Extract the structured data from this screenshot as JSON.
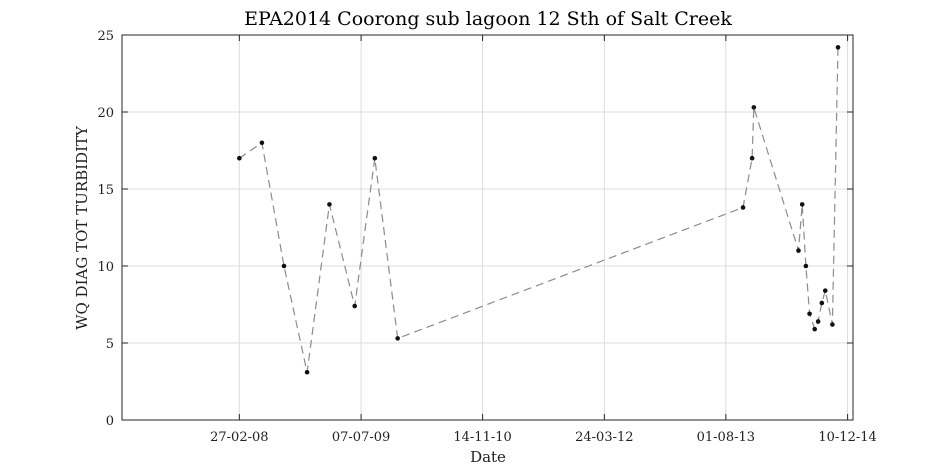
{
  "chart_data": {
    "type": "scatter",
    "title": "EPA2014 Coorong sub lagoon 12 Sth of Salt Creek",
    "xlabel": "Date",
    "ylabel": "WQ DIAG TOT TURBIDITY",
    "xlim": [
      "2006-11-06",
      "2015-01-01"
    ],
    "ylim": [
      0,
      25
    ],
    "x_ticks": [
      "2008-02-27",
      "2009-07-07",
      "2010-11-14",
      "2012-03-24",
      "2013-08-01",
      "2014-12-10"
    ],
    "x_tick_labels": [
      "27-02-08",
      "07-07-09",
      "14-11-10",
      "24-03-12",
      "01-08-13",
      "10-12-14"
    ],
    "y_ticks": [
      0,
      5,
      10,
      15,
      20,
      25
    ],
    "y_tick_labels": [
      "0",
      "5",
      "10",
      "15",
      "20",
      "25"
    ],
    "grid": true,
    "line_style": "dashed",
    "colors": {
      "line": "#8c8c8c",
      "marker": "#111111",
      "grid": "#dcdcdc"
    },
    "series": [
      {
        "points": [
          {
            "x": "2008-02-27",
            "y": 17.0
          },
          {
            "x": "2008-05-29",
            "y": 18.0
          },
          {
            "x": "2008-08-27",
            "y": 10.0
          },
          {
            "x": "2008-11-29",
            "y": 3.1
          },
          {
            "x": "2009-02-28",
            "y": 14.0
          },
          {
            "x": "2009-06-11",
            "y": 7.4
          },
          {
            "x": "2009-09-01",
            "y": 17.0
          },
          {
            "x": "2009-12-03",
            "y": 5.3
          },
          {
            "x": "2013-10-10",
            "y": 13.8
          },
          {
            "x": "2013-11-16",
            "y": 17.0
          },
          {
            "x": "2013-11-23",
            "y": 20.3
          },
          {
            "x": "2014-05-24",
            "y": 11.0
          },
          {
            "x": "2014-06-08",
            "y": 14.0
          },
          {
            "x": "2014-06-23",
            "y": 10.0
          },
          {
            "x": "2014-07-08",
            "y": 6.9
          },
          {
            "x": "2014-07-29",
            "y": 5.9
          },
          {
            "x": "2014-08-12",
            "y": 6.4
          },
          {
            "x": "2014-08-27",
            "y": 7.6
          },
          {
            "x": "2014-09-10",
            "y": 8.4
          },
          {
            "x": "2014-10-09",
            "y": 6.2
          },
          {
            "x": "2014-11-01",
            "y": 24.2
          }
        ]
      }
    ]
  }
}
